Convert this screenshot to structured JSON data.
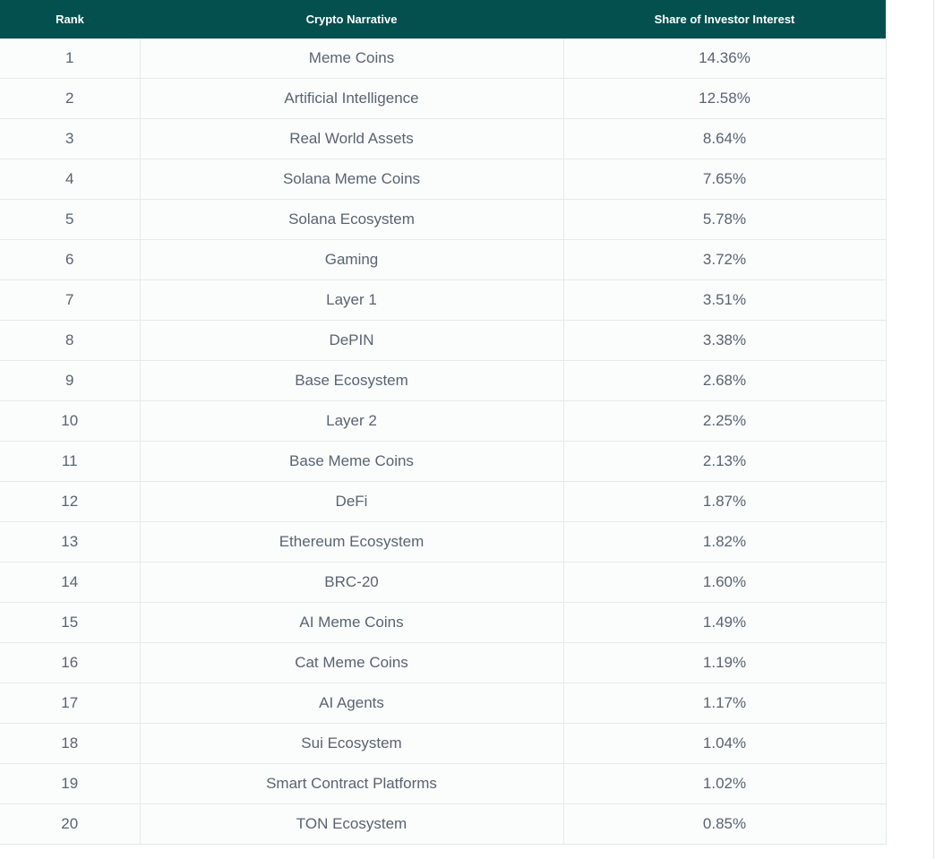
{
  "table": {
    "headers": [
      "Rank",
      "Crypto Narrative",
      "Share of Investor Interest"
    ],
    "rows": [
      [
        "1",
        "Meme Coins",
        "14.36%"
      ],
      [
        "2",
        "Artificial Intelligence",
        "12.58%"
      ],
      [
        "3",
        "Real World Assets",
        "8.64%"
      ],
      [
        "4",
        "Solana Meme Coins",
        "7.65%"
      ],
      [
        "5",
        "Solana Ecosystem",
        "5.78%"
      ],
      [
        "6",
        "Gaming",
        "3.72%"
      ],
      [
        "7",
        "Layer 1",
        "3.51%"
      ],
      [
        "8",
        "DePIN",
        "3.38%"
      ],
      [
        "9",
        "Base Ecosystem",
        "2.68%"
      ],
      [
        "10",
        "Layer 2",
        "2.25%"
      ],
      [
        "11",
        "Base Meme Coins",
        "2.13%"
      ],
      [
        "12",
        "DeFi",
        "1.87%"
      ],
      [
        "13",
        "Ethereum Ecosystem",
        "1.82%"
      ],
      [
        "14",
        "BRC-20",
        "1.60%"
      ],
      [
        "15",
        "AI Meme Coins",
        "1.49%"
      ],
      [
        "16",
        "Cat Meme Coins",
        "1.19%"
      ],
      [
        "17",
        "AI Agents",
        "1.17%"
      ],
      [
        "18",
        "Sui Ecosystem",
        "1.04%"
      ],
      [
        "19",
        "Smart Contract Platforms",
        "1.02%"
      ],
      [
        "20",
        "TON Ecosystem",
        "0.85%"
      ]
    ]
  }
}
